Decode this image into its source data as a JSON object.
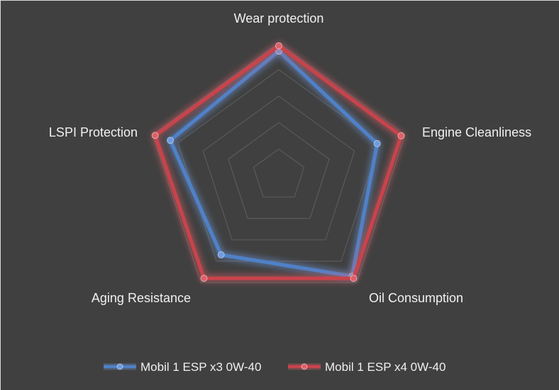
{
  "chart_data": {
    "type": "radar",
    "title": "",
    "background": "#404040",
    "grid": true,
    "grid_color": "#5a5a5a",
    "rmax": 5,
    "grid_levels": 5,
    "legend_position": "bottom",
    "axes": [
      "Wear protection",
      "Engine Cleanliness",
      "Oil Consumption",
      "Aging Resistance",
      "LSPI Protection"
    ],
    "series": [
      {
        "name": "Mobil 1 ESP x3 0W-40",
        "color": "#4f81c9",
        "glow": "#6f9be0",
        "values": [
          4.7,
          3.9,
          4.7,
          3.7,
          4.3
        ]
      },
      {
        "name": "Mobil 1 ESP x4 0W-40",
        "color": "#c9434b",
        "glow": "#e06068",
        "values": [
          4.9,
          4.85,
          4.8,
          4.8,
          4.9
        ]
      }
    ]
  }
}
